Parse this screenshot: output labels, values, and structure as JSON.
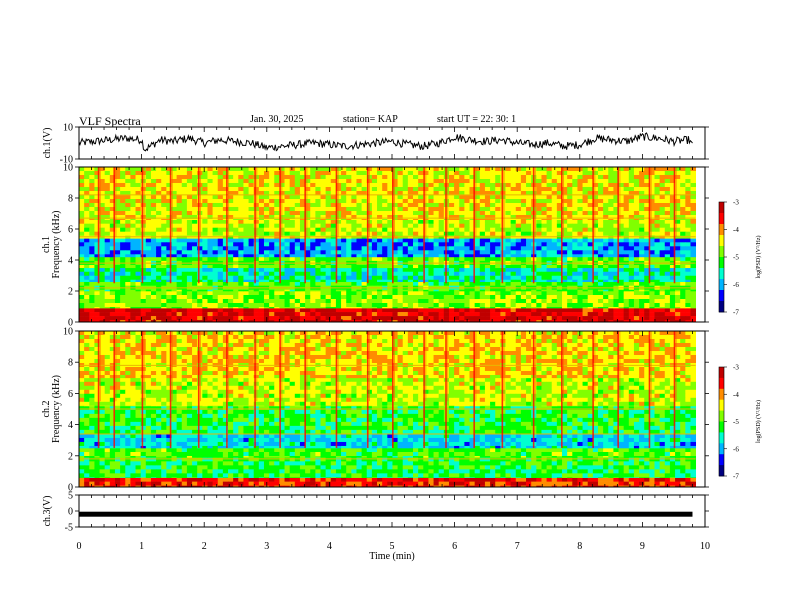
{
  "header": {
    "title": "VLF Spectra",
    "date": "Jan. 30, 2025",
    "station": "station= KAP",
    "start_ut": "start UT =  22: 30: 1"
  },
  "colorbar": {
    "label": "log(PSD) (V²/Hz)",
    "ticks": [
      -3,
      -4,
      -5,
      -6,
      -7
    ],
    "range": [
      -7,
      -3
    ],
    "colors": [
      "#000080",
      "#0000ff",
      "#00b4ff",
      "#00ffd0",
      "#00ff00",
      "#80ff00",
      "#ffff00",
      "#ff8c00",
      "#ff0000",
      "#c00000"
    ]
  },
  "chart_data": [
    {
      "type": "line",
      "ylabel": "ch.1(V)",
      "ylim": [
        -10,
        10
      ],
      "yticks": [
        10,
        -10
      ],
      "xlim": [
        0,
        10
      ],
      "series": [
        {
          "name": "ch.1",
          "x": [
            0,
            0.25,
            0.5,
            0.75,
            1.0,
            1.05,
            1.1,
            1.3,
            1.5,
            1.75,
            2.0,
            2.25,
            2.5,
            2.75,
            3.0,
            3.25,
            3.5,
            3.75,
            4.0,
            4.25,
            4.5,
            4.75,
            5.0,
            5.25,
            5.5,
            5.75,
            6.0,
            6.25,
            6.5,
            6.75,
            7.0,
            7.25,
            7.5,
            7.75,
            8.0,
            8.25,
            8.5,
            8.75,
            9.0,
            9.25,
            9.5,
            9.75,
            9.8
          ],
          "values": [
            0,
            1,
            2,
            3,
            2,
            -4,
            -3,
            2,
            1,
            3,
            0,
            2,
            1,
            0,
            -3,
            -2,
            -1,
            0,
            -1,
            -2,
            -1,
            0,
            1,
            -1,
            -2,
            0,
            4,
            2,
            1,
            2,
            0,
            -1,
            0,
            -2,
            -1,
            3,
            2,
            1,
            4,
            3,
            1,
            2,
            -2
          ]
        }
      ]
    },
    {
      "type": "heatmap",
      "ylabel": "ch.1  Frequency (kHz)",
      "ylim": [
        0,
        10
      ],
      "yticks": [
        0,
        2,
        4,
        6,
        8,
        10
      ],
      "xlim": [
        0,
        10
      ],
      "bands": [
        {
          "kHz": [
            0,
            0.9
          ],
          "log_psd": -3.4
        },
        {
          "kHz": [
            0.9,
            2.0
          ],
          "log_psd": -4.8
        },
        {
          "kHz": [
            2.0,
            2.6
          ],
          "log_psd": -5.0
        },
        {
          "kHz": [
            2.6,
            3.5
          ],
          "log_psd": -5.6
        },
        {
          "kHz": [
            3.5,
            4.2
          ],
          "log_psd": -5.0
        },
        {
          "kHz": [
            4.2,
            5.4
          ],
          "log_psd": -6.0
        },
        {
          "kHz": [
            5.4,
            6.6
          ],
          "log_psd": -4.6
        },
        {
          "kHz": [
            6.6,
            10
          ],
          "log_psd": -4.4
        }
      ],
      "sferic_times_min": [
        0.3,
        0.55,
        1.0,
        1.45,
        1.9,
        2.35,
        2.8,
        3.2,
        3.6,
        4.1,
        4.6,
        5.0,
        5.5,
        5.85,
        6.3,
        6.75,
        7.25,
        7.7,
        8.2,
        8.6,
        9.1,
        9.5
      ],
      "tone_lines_kHz": [
        2.2,
        3.8,
        5.5,
        6.7,
        8.2
      ]
    },
    {
      "type": "heatmap",
      "ylabel": "ch.2  Frequency (kHz)",
      "ylim": [
        0,
        10
      ],
      "yticks": [
        0,
        2,
        4,
        6,
        8,
        10
      ],
      "xlim": [
        0,
        10
      ],
      "bands": [
        {
          "kHz": [
            0,
            0.6
          ],
          "log_psd": -3.6
        },
        {
          "kHz": [
            0.6,
            1.9
          ],
          "log_psd": -5.2
        },
        {
          "kHz": [
            1.9,
            2.5
          ],
          "log_psd": -5.0
        },
        {
          "kHz": [
            2.5,
            3.4
          ],
          "log_psd": -5.8
        },
        {
          "kHz": [
            3.4,
            5.2
          ],
          "log_psd": -5.2
        },
        {
          "kHz": [
            5.2,
            7.0
          ],
          "log_psd": -4.6
        },
        {
          "kHz": [
            7.0,
            10
          ],
          "log_psd": -4.3
        }
      ],
      "sferic_times_min": [
        0.3,
        0.55,
        1.0,
        1.45,
        1.9,
        2.35,
        2.8,
        3.2,
        3.6,
        4.1,
        4.6,
        5.0,
        5.5,
        5.85,
        6.3,
        6.75,
        7.25,
        7.7,
        8.2,
        8.6,
        9.1,
        9.5
      ],
      "tone_lines_kHz": [
        1.8,
        3.4,
        5.0,
        7.8
      ]
    },
    {
      "type": "line",
      "ylabel": "ch.3(V)",
      "ylim": [
        -5,
        5
      ],
      "yticks": [
        5,
        0,
        -5
      ],
      "xlim": [
        0,
        10
      ],
      "xlabel": "Time (min)",
      "xticks": [
        0,
        1,
        2,
        3,
        4,
        5,
        6,
        7,
        8,
        9,
        10
      ],
      "series": [
        {
          "name": "ch.3",
          "x": [
            0,
            9.8
          ],
          "values": [
            -1,
            -1
          ]
        }
      ]
    }
  ]
}
